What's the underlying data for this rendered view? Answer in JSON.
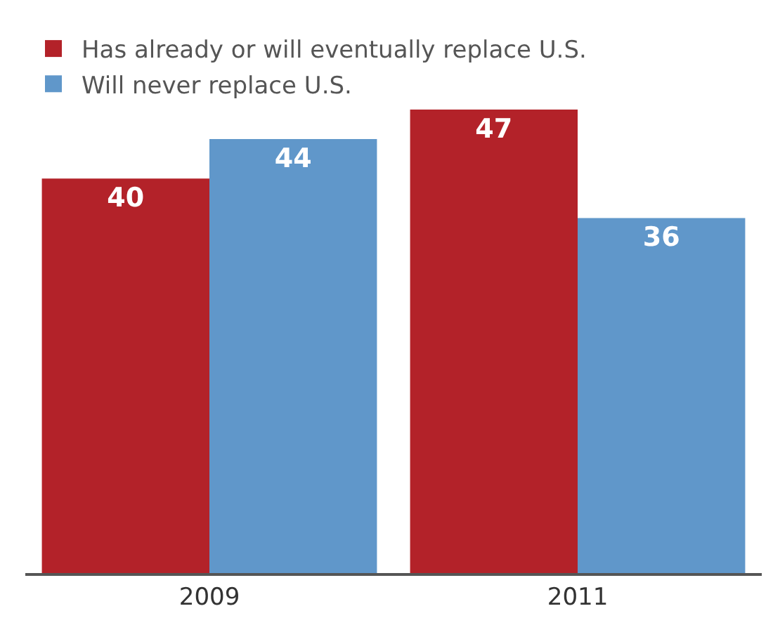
{
  "chart_data": {
    "type": "bar",
    "categories": [
      "2009",
      "2011"
    ],
    "series": [
      {
        "name": "Has already or will eventually replace U.S.",
        "color": "#b32229",
        "values": [
          40,
          47
        ]
      },
      {
        "name": "Will never replace U.S.",
        "color": "#6097ca",
        "values": [
          44,
          36
        ]
      }
    ],
    "data_labels": true,
    "legend": "top left"
  }
}
